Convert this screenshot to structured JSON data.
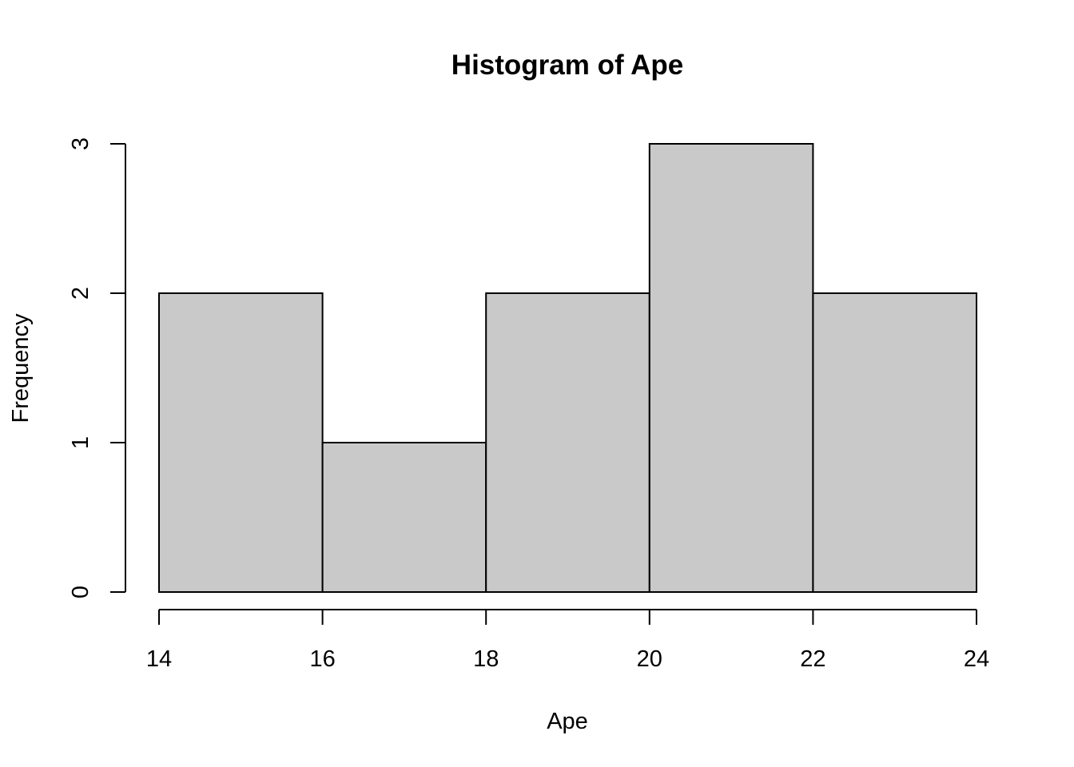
{
  "chart_data": {
    "type": "bar",
    "title": "Histogram of Ape",
    "xlabel": "Ape",
    "ylabel": "Frequency",
    "bins": [
      {
        "start": 14,
        "end": 16,
        "count": 2
      },
      {
        "start": 16,
        "end": 18,
        "count": 1
      },
      {
        "start": 18,
        "end": 20,
        "count": 2
      },
      {
        "start": 20,
        "end": 22,
        "count": 3
      },
      {
        "start": 22,
        "end": 24,
        "count": 2
      }
    ],
    "x_ticks": [
      14,
      16,
      18,
      20,
      22,
      24
    ],
    "y_ticks": [
      0,
      1,
      2,
      3
    ],
    "xlim": [
      14,
      24
    ],
    "ylim": [
      0,
      3
    ],
    "grid": false,
    "legend": "none",
    "bar_color": "#c9c9c9",
    "edge_color": "#000000"
  }
}
